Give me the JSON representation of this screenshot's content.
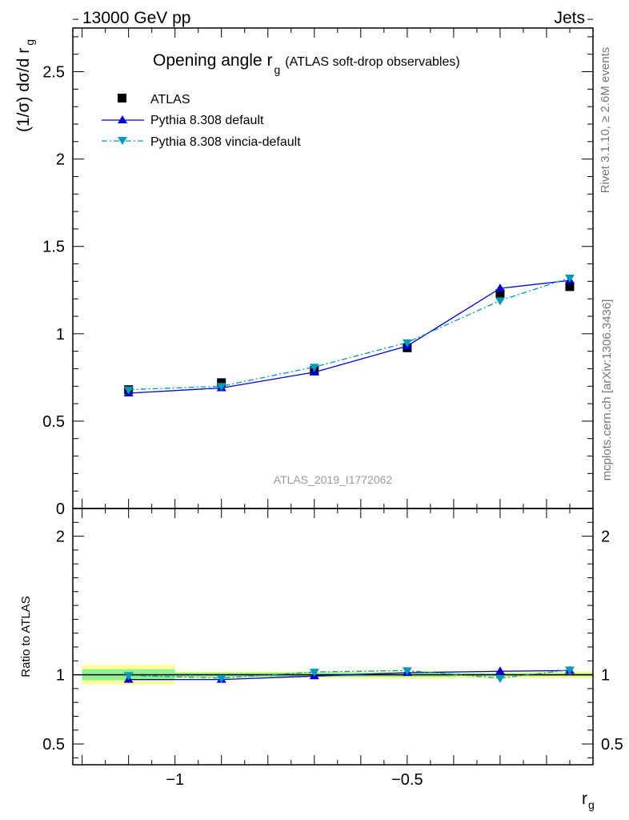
{
  "header": {
    "energy_label": "13000 GeV pp",
    "process_label": "Jets"
  },
  "side_labels": {
    "rivet": "Rivet 3.1.10, ≥ 2.6M events",
    "mcplots": "mcplots.cern.ch [arXiv:1306.3436]"
  },
  "chart_data": [
    {
      "type": "line",
      "title_main": "Opening angle r",
      "title_sub": "g",
      "title_note": "(ATLAS soft-drop observables)",
      "ylabel_main": "(1/σ) dσ/d r",
      "ylabel_sub": "g",
      "watermark": "ATLAS_2019_I1772062",
      "xlim": [
        -1.22,
        -0.1
      ],
      "ylim": [
        0,
        2.75
      ],
      "x_ticks": [
        -1,
        -0.5
      ],
      "y_ticks": [
        0.5,
        1,
        1.5,
        2,
        2.5
      ],
      "y_tick_labels": [
        "0.5",
        "1",
        "1.5",
        "2",
        "2.5"
      ],
      "y_zero_label": "0",
      "legend_position": "top-left",
      "x": [
        -1.1,
        -0.9,
        -0.7,
        -0.5,
        -0.3,
        -0.15
      ],
      "series": [
        {
          "name": "ATLAS",
          "values": [
            0.68,
            0.72,
            0.79,
            0.92,
            1.23,
            1.27
          ],
          "color": "#000000",
          "marker": "square",
          "style": "none"
        },
        {
          "name": "Pythia 8.308 default",
          "values": [
            0.66,
            0.69,
            0.78,
            0.93,
            1.26,
            1.305
          ],
          "color": "#0000cc",
          "marker": "triangle-up",
          "style": "solid"
        },
        {
          "name": "Pythia 8.308 vincia-default",
          "values": [
            0.68,
            0.7,
            0.81,
            0.95,
            1.19,
            1.32
          ],
          "color": "#0099bb",
          "marker": "triangle-down",
          "style": "dashdot"
        }
      ]
    },
    {
      "type": "line",
      "ylabel": "Ratio to ATLAS",
      "xlabel_main": "r",
      "xlabel_sub": "g",
      "xlim": [
        -1.22,
        -0.1
      ],
      "ylim": [
        0.35,
        2.2
      ],
      "x_ticks": [
        -1,
        -0.5
      ],
      "x_tick_labels": [
        "−1",
        "−0.5"
      ],
      "y_ticks": [
        0.5,
        1,
        2
      ],
      "y_tick_labels": [
        "0.5",
        "1",
        "2"
      ],
      "reference_line": 1.0,
      "x_edges": [
        -1.2,
        -1.0,
        -0.8,
        -0.6,
        -0.4,
        -0.2,
        -0.1
      ],
      "band_inner": {
        "color": "#8ff08f",
        "lower": [
          0.96,
          0.985,
          0.985,
          0.985,
          0.99,
          0.99
        ],
        "upper": [
          1.04,
          1.015,
          1.015,
          1.015,
          1.01,
          1.01
        ]
      },
      "band_outer": {
        "color": "#ffff99",
        "lower": [
          0.93,
          0.975,
          0.975,
          0.97,
          0.975,
          0.975
        ],
        "upper": [
          1.07,
          1.025,
          1.025,
          1.03,
          1.025,
          1.025
        ]
      },
      "x": [
        -1.1,
        -0.9,
        -0.7,
        -0.5,
        -0.3,
        -0.15
      ],
      "series": [
        {
          "name": "Pythia 8.308 default",
          "values": [
            0.965,
            0.965,
            0.99,
            1.015,
            1.025,
            1.03
          ],
          "color": "#0000cc",
          "marker": "triangle-up",
          "style": "solid"
        },
        {
          "name": "Pythia 8.308 vincia-default",
          "values": [
            0.995,
            0.975,
            1.02,
            1.03,
            0.975,
            1.035
          ],
          "color": "#0099bb",
          "marker": "triangle-down",
          "style": "dashdot"
        }
      ]
    }
  ]
}
